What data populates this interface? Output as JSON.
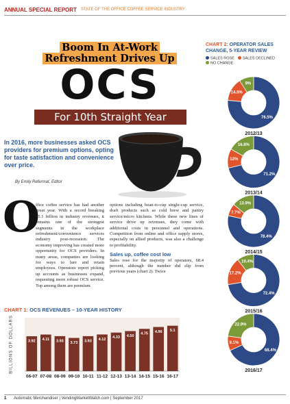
{
  "header": {
    "section": "ANNUAL SPECIAL REPORT",
    "subsection": "STATE OF THE OFFICE COFFEE SERVICE INDUSTRY"
  },
  "headline": {
    "line1": "Boom In At-Work",
    "line2": "Refreshment Drives Up",
    "big": "OCS",
    "banner": "For 10th Straight Year"
  },
  "intro": "In 2016, more businesses asked OCS providers for premium options, opting for taste satisfaction and convenience over price.",
  "byline": "By Emily Refermat, Editor",
  "body": {
    "drop_cap": "O",
    "col1": "ffice coffee service has had another great year. With a record breaking $5.1 billion in industry revenues, it remains one of the strongest segments in the workplace refreshment/convenience services industry post-recession. The economy improving has created more opportunity for OCS providers. In many areas, companies are looking for ways to lure and retain employees. Operators report picking up accounts as businesses expand, requesting more robust OCS service. Top among them are premium",
    "col2": "options including bean-to-cup single-cup service, draft products such as cold brew and pantry service/micro kitchens. While these new lines of service drive up revenues, they come with additional costs in personnel and operations. Competition from online and office supply stores, especially on allied products, was also a challenge to profitability.",
    "subhead": "Sales up, coffee cost low",
    "col2b": "Sales rose for the majority of operators, 68.4 percent, although the number did slip from previous years (chart 2). Twice"
  },
  "chart_data": [
    {
      "type": "bar",
      "label": "CHART 1:",
      "title": "OCS REVENUES – 10-YEAR HISTORY",
      "y_label": "BILLIONS OF DOLLARS",
      "categories": [
        "06-07",
        "07-08",
        "08-09",
        "09-10",
        "10-11",
        "11-12",
        "12-13",
        "13-14",
        "14-15",
        "15-16",
        "16-17"
      ],
      "values": [
        3.92,
        4.11,
        3.93,
        3.73,
        3.93,
        4.12,
        4.33,
        4.5,
        4.75,
        4.96,
        5.1
      ],
      "value_labels": [
        "3.92",
        "4.11",
        "3.93",
        "3.73",
        "3.93",
        "4.12",
        "4.33",
        "4.50",
        "4.75",
        "4.96",
        "5.1"
      ],
      "color": "#7a3326",
      "ylim": [
        0,
        6
      ]
    },
    {
      "type": "pie",
      "label": "CHART 2:",
      "title": "OPERATOR SALES CHANGE, 5-YEAR REVIEW",
      "categories": [
        "2012/13",
        "2013/14",
        "2014/15",
        "2015/16",
        "2016/17"
      ],
      "series": [
        {
          "name": "SALES ROSE",
          "color": "#2e4a86",
          "values": [
            76.5,
            71.2,
            78.4,
            72.4,
            68.4
          ],
          "value_labels": [
            "76.5%",
            "71.2%",
            "78.4%",
            "72.4%",
            "68.4%"
          ]
        },
        {
          "name": "SALES DECLINED",
          "color": "#e2542b",
          "values": [
            14.5,
            12,
            7.7,
            17.2,
            9.1
          ],
          "value_labels": [
            "14.5%",
            "12%",
            "7.7%",
            "17.2%",
            "9.1%"
          ]
        },
        {
          "name": "NO CHANGE",
          "color": "#7b9a3a",
          "values": [
            9,
            16.8,
            13.9,
            10.4,
            22.9
          ],
          "value_labels": [
            "9%",
            "16.8%",
            "13.9%",
            "10.4%",
            "22.9%"
          ]
        }
      ]
    }
  ],
  "footer": {
    "page": "1",
    "publication": "Automatic Merchandiser | VendingMarketWatch.com | September 2017"
  }
}
